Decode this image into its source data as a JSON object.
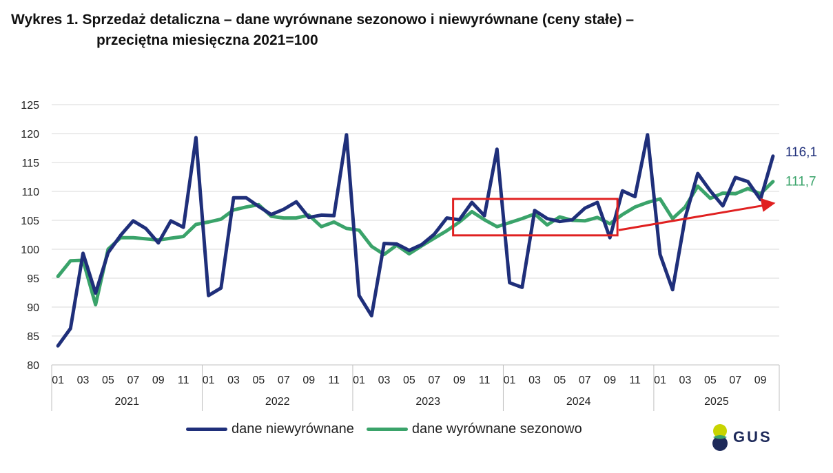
{
  "title": {
    "line1": "Wykres 1. Sprzedaż detaliczna – dane wyrównane sezonowo i niewyrównane (ceny stałe) –",
    "line2": "przeciętna miesięczna 2021=100"
  },
  "chart_data": {
    "type": "line",
    "title": "Sprzedaż detaliczna – dane wyrównane sezonowo i niewyrównane (ceny stałe) – przeciętna miesięczna 2021=100",
    "ylim": [
      80,
      125
    ],
    "yticks": [
      "80",
      "85",
      "90",
      "95",
      "100",
      "105",
      "110",
      "115",
      "120",
      "125"
    ],
    "grid": true,
    "month_ticks": [
      "01",
      "03",
      "05",
      "07",
      "09",
      "11",
      "01",
      "03",
      "05",
      "07",
      "09",
      "11",
      "01",
      "03",
      "05",
      "07",
      "09",
      "11",
      "01",
      "03",
      "05",
      "07",
      "09",
      "11",
      "01",
      "03",
      "05",
      "07",
      "09"
    ],
    "years": [
      "2021",
      "2022",
      "2023",
      "2024",
      "2025"
    ],
    "x_start": "2021-01",
    "x_end": "2025-10",
    "series": [
      {
        "name": "dane niewyrównane",
        "color": "#1f2f7a",
        "values": [
          83.3,
          86.3,
          99.3,
          92.4,
          99.4,
          102.4,
          104.9,
          103.6,
          101.1,
          104.9,
          103.8,
          119.3,
          92.0,
          93.3,
          108.9,
          108.9,
          107.4,
          106.0,
          106.9,
          108.2,
          105.5,
          105.9,
          105.8,
          119.8,
          92.0,
          88.5,
          101.0,
          100.9,
          99.8,
          100.8,
          102.6,
          105.4,
          105.1,
          108.1,
          105.8,
          117.3,
          94.2,
          93.4,
          106.7,
          105.3,
          104.8,
          105.1,
          107.1,
          108.1,
          102.0,
          110.1,
          109.1,
          119.8,
          99.1,
          93.0,
          105.4,
          113.1,
          110.1,
          107.5,
          112.4,
          111.7,
          108.6,
          116.1
        ]
      },
      {
        "name": "dane wyrównane sezonowo",
        "color": "#3aa36a",
        "values": [
          95.3,
          98.0,
          98.1,
          90.4,
          100.0,
          102.0,
          102.0,
          101.8,
          101.6,
          101.9,
          102.2,
          104.3,
          104.7,
          105.2,
          106.8,
          107.3,
          107.7,
          105.7,
          105.4,
          105.4,
          105.9,
          103.9,
          104.7,
          103.6,
          103.3,
          100.5,
          99.1,
          100.7,
          99.2,
          100.6,
          101.9,
          103.2,
          104.7,
          106.5,
          105.1,
          103.9,
          104.6,
          105.3,
          106.1,
          104.2,
          105.6,
          105.0,
          104.9,
          105.5,
          104.4,
          106.0,
          107.3,
          108.1,
          108.7,
          105.3,
          107.3,
          110.9,
          108.8,
          109.7,
          109.6,
          110.5,
          109.6,
          111.7
        ]
      }
    ],
    "end_labels": [
      "116,1",
      "111,7"
    ],
    "annotations": [
      "highlight box 2023-09 to 2024-09",
      "upward trend arrow 2024-10 to 2025-10"
    ]
  },
  "legend": {
    "item1": "dane niewyrównane",
    "item2": "dane wyrównane sezonowo"
  },
  "logo": {
    "text": "GUS"
  },
  "colors": {
    "navy": "#1f2f7a",
    "green": "#3aa36a",
    "highlight_red": "#e02020",
    "grid": "#d9d9d9",
    "logo_yellow": "#c8d400",
    "logo_green": "#3aa36a",
    "logo_blue": "#1e2a5a"
  }
}
